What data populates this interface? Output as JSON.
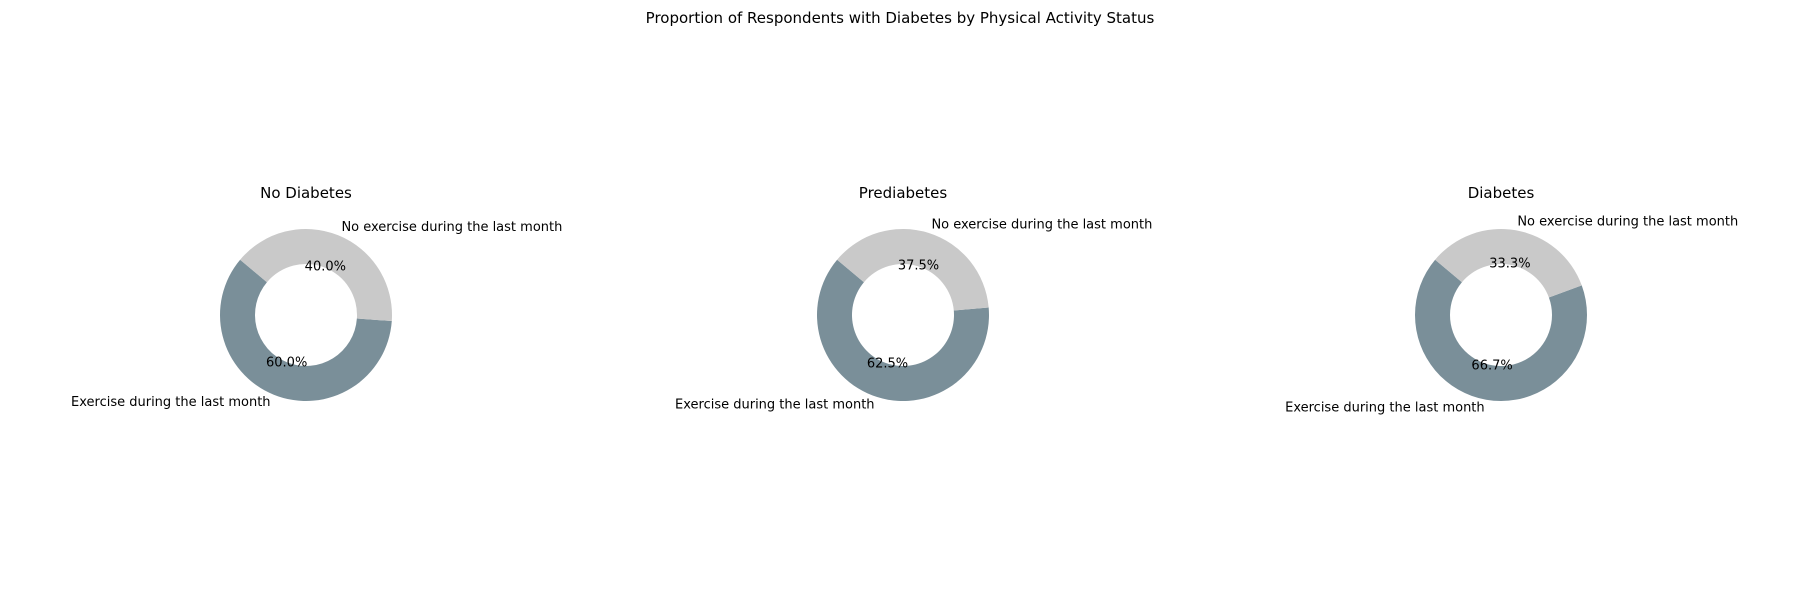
{
  "title": "Proportion of Respondents with Diabetes by Physical Activity Status",
  "colors": {
    "exercise": "#7a8f99",
    "no_exercise": "#c9c9c9",
    "background": "#ffffff"
  },
  "chart_data": [
    {
      "type": "pie",
      "style": "donut",
      "title": "No Diabetes",
      "slices": [
        {
          "label": "Exercise during the last month",
          "value": 60.0,
          "pct_text": "60.0%"
        },
        {
          "label": "No exercise during the last month",
          "value": 40.0,
          "pct_text": "40.0%"
        }
      ]
    },
    {
      "type": "pie",
      "style": "donut",
      "title": "Prediabetes",
      "slices": [
        {
          "label": "Exercise during the last month",
          "value": 62.5,
          "pct_text": "62.5%"
        },
        {
          "label": "No exercise during the last month",
          "value": 37.5,
          "pct_text": "37.5%"
        }
      ]
    },
    {
      "type": "pie",
      "style": "donut",
      "title": "Diabetes",
      "slices": [
        {
          "label": "Exercise during the last month",
          "value": 66.7,
          "pct_text": "66.7%"
        },
        {
          "label": "No exercise during the last month",
          "value": 33.3,
          "pct_text": "33.3%"
        }
      ]
    }
  ]
}
